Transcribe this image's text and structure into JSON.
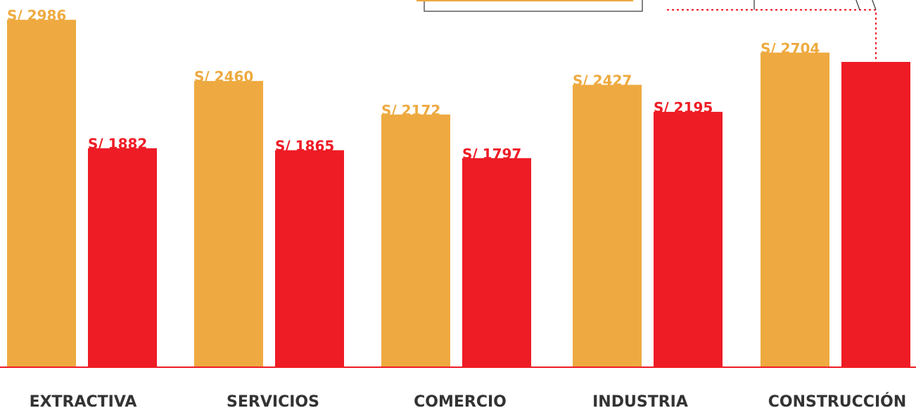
{
  "chart_data": {
    "type": "bar",
    "categories": [
      "EXTRACTIVA",
      "SERVICIOS",
      "COMERCIO",
      "INDUSTRIA",
      "CONSTRUCCIÓN"
    ],
    "series": [
      {
        "color": "#eeaa40",
        "values": [
          2986,
          2460,
          2172,
          2427,
          2704
        ],
        "value_labels": [
          "S/ 2986",
          "S/ 2460",
          "S/ 2172",
          "S/ 2427",
          "S/ 2704"
        ]
      },
      {
        "color": "#ee1c25",
        "values": [
          1882,
          1865,
          1797,
          2195,
          2624
        ],
        "value_labels": [
          "S/ 1882",
          "S/ 1865",
          "S/ 1797",
          "S/ 2195",
          null
        ]
      }
    ],
    "ylim": [
      0,
      3156
    ]
  }
}
